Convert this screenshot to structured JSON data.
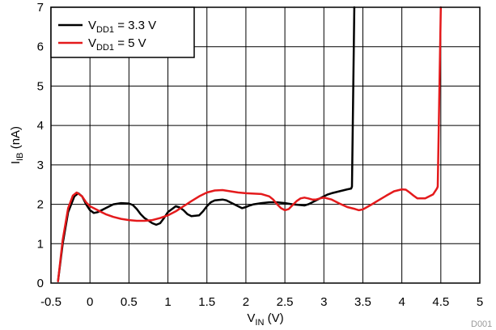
{
  "chart_data": {
    "type": "line",
    "xlim": [
      -0.5,
      5
    ],
    "ylim": [
      0,
      7
    ],
    "xticks": [
      "-0.5",
      "0",
      "0.5",
      "1",
      "1.5",
      "2",
      "2.5",
      "3",
      "3.5",
      "4",
      "4.5",
      "5"
    ],
    "yticks": [
      "0",
      "1",
      "2",
      "3",
      "4",
      "5",
      "6",
      "7"
    ],
    "xlabel": {
      "main": "V",
      "sub": "IN",
      "unit": " (V)"
    },
    "ylabel": {
      "main": "I",
      "sub": "IB",
      "unit": " (nA)"
    },
    "grid": true,
    "legend_position": "top-left",
    "figure_code": "D001",
    "series": [
      {
        "name": "VDD1 = 3.3 V",
        "label": {
          "main": "V",
          "sub": "DD1",
          "rest": " = 3.3 V"
        },
        "color": "#000000",
        "x": [
          -0.41,
          -0.35,
          -0.28,
          -0.2,
          -0.15,
          -0.1,
          -0.05,
          0.0,
          0.05,
          0.1,
          0.2,
          0.3,
          0.4,
          0.5,
          0.55,
          0.6,
          0.65,
          0.7,
          0.8,
          0.85,
          0.9,
          0.95,
          1.0,
          1.1,
          1.15,
          1.2,
          1.25,
          1.3,
          1.4,
          1.45,
          1.5,
          1.55,
          1.6,
          1.7,
          1.75,
          1.8,
          1.9,
          1.95,
          2.0,
          2.05,
          2.1,
          2.2,
          2.3,
          2.4,
          2.5,
          2.6,
          2.7,
          2.75,
          2.8,
          2.9,
          3.0,
          3.05,
          3.1,
          3.2,
          3.3,
          3.35,
          3.36,
          3.39
        ],
        "y": [
          0.05,
          1.0,
          1.8,
          2.2,
          2.28,
          2.2,
          2.0,
          1.85,
          1.78,
          1.8,
          1.9,
          2.0,
          2.03,
          2.02,
          1.98,
          1.88,
          1.75,
          1.65,
          1.52,
          1.48,
          1.52,
          1.65,
          1.8,
          1.95,
          1.92,
          1.85,
          1.75,
          1.7,
          1.72,
          1.82,
          1.95,
          2.05,
          2.1,
          2.12,
          2.1,
          2.05,
          1.95,
          1.9,
          1.93,
          1.97,
          2.0,
          2.03,
          2.05,
          2.05,
          2.03,
          2.0,
          1.98,
          1.97,
          2.0,
          2.1,
          2.2,
          2.25,
          2.28,
          2.33,
          2.38,
          2.4,
          2.45,
          7.0
        ]
      },
      {
        "name": "VDD1 = 5 V",
        "label": {
          "main": "V",
          "sub": "DD1",
          "rest": " = 5 V"
        },
        "color": "#e41a1c",
        "x": [
          -0.41,
          -0.35,
          -0.28,
          -0.22,
          -0.17,
          -0.1,
          -0.05,
          0.0,
          0.1,
          0.2,
          0.3,
          0.4,
          0.5,
          0.6,
          0.7,
          0.8,
          0.9,
          1.0,
          1.1,
          1.2,
          1.3,
          1.4,
          1.5,
          1.6,
          1.7,
          1.8,
          1.9,
          2.0,
          2.1,
          2.2,
          2.3,
          2.35,
          2.4,
          2.45,
          2.5,
          2.55,
          2.6,
          2.65,
          2.7,
          2.75,
          2.8,
          2.85,
          2.9,
          2.95,
          3.0,
          3.1,
          3.2,
          3.3,
          3.4,
          3.45,
          3.5,
          3.6,
          3.7,
          3.8,
          3.9,
          4.0,
          4.05,
          4.1,
          4.15,
          4.2,
          4.3,
          4.4,
          4.45,
          4.46,
          4.5
        ],
        "y": [
          0.05,
          1.1,
          1.9,
          2.22,
          2.3,
          2.2,
          2.05,
          1.95,
          1.85,
          1.75,
          1.68,
          1.63,
          1.6,
          1.58,
          1.58,
          1.6,
          1.65,
          1.72,
          1.82,
          1.95,
          2.08,
          2.2,
          2.3,
          2.35,
          2.36,
          2.33,
          2.3,
          2.28,
          2.27,
          2.26,
          2.2,
          2.12,
          2.0,
          1.9,
          1.85,
          1.88,
          1.98,
          2.08,
          2.15,
          2.17,
          2.15,
          2.12,
          2.12,
          2.15,
          2.17,
          2.12,
          2.02,
          1.93,
          1.88,
          1.85,
          1.87,
          1.98,
          2.1,
          2.22,
          2.33,
          2.38,
          2.37,
          2.3,
          2.22,
          2.15,
          2.15,
          2.25,
          2.4,
          2.45,
          7.0
        ]
      }
    ]
  }
}
